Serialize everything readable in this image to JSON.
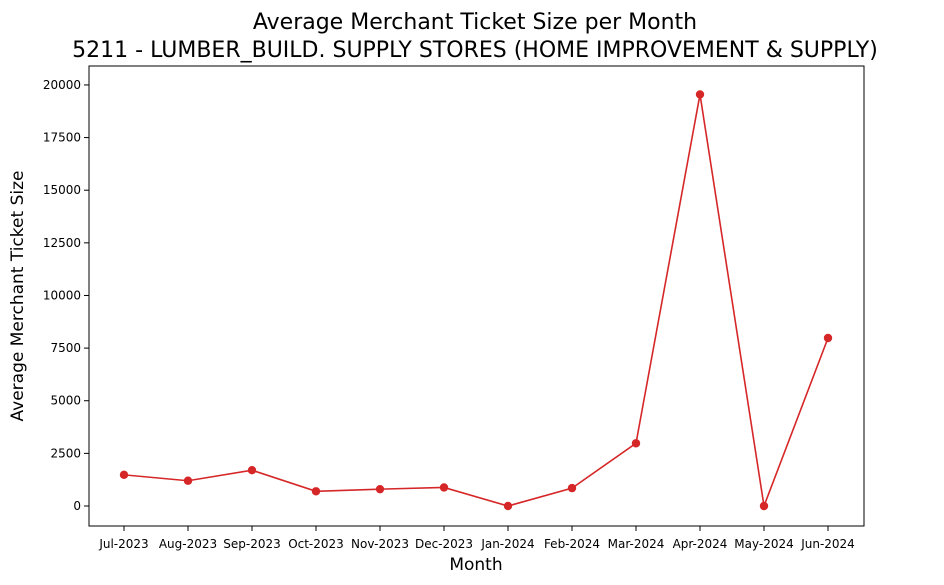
{
  "chart_data": {
    "type": "line",
    "title": "Average Merchant Ticket Size per Month",
    "subtitle": "5211 - LUMBER_BUILD. SUPPLY STORES (HOME IMPROVEMENT & SUPPLY)",
    "xlabel": "Month",
    "ylabel": "Average Merchant Ticket Size",
    "categories": [
      "Jul-2023",
      "Aug-2023",
      "Sep-2023",
      "Oct-2023",
      "Nov-2023",
      "Dec-2023",
      "Jan-2024",
      "Feb-2024",
      "Mar-2024",
      "Apr-2024",
      "May-2024",
      "Jun-2024"
    ],
    "series": [
      {
        "color": "#d62728",
        "values": [
          1480,
          1200,
          1700,
          700,
          800,
          880,
          0,
          850,
          2980,
          19550,
          0,
          7980
        ]
      }
    ],
    "yticks": [
      0,
      2500,
      5000,
      7500,
      10000,
      12500,
      15000,
      17500,
      20000
    ],
    "ylim": [
      -950,
      20900
    ],
    "grid": false,
    "legend": "none"
  }
}
